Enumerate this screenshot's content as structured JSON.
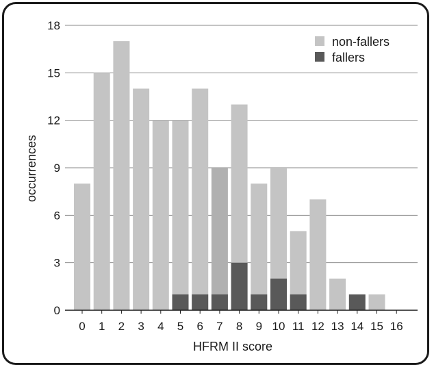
{
  "chart_data": {
    "type": "bar",
    "title": "",
    "xlabel": "HFRM II score",
    "ylabel": "occurrences",
    "ylim": [
      0,
      18
    ],
    "yticks": [
      0,
      3,
      6,
      9,
      12,
      15,
      18
    ],
    "grid": true,
    "legend_position": "top-right",
    "categories": [
      "0",
      "1",
      "2",
      "3",
      "4",
      "5",
      "6",
      "7",
      "8",
      "9",
      "10",
      "11",
      "12",
      "13",
      "14",
      "15",
      "16"
    ],
    "series": [
      {
        "name": "non-fallers",
        "color": "#c4c4c4",
        "values": [
          8,
          15,
          17,
          14,
          12,
          12,
          14,
          9,
          13,
          8,
          9,
          5,
          7,
          2,
          0,
          1,
          0
        ]
      },
      {
        "name": "fallers",
        "color": "#595959",
        "values": [
          0,
          0,
          0,
          0,
          0,
          1,
          1,
          1,
          3,
          1,
          2,
          1,
          0,
          0,
          1,
          0,
          0
        ]
      }
    ],
    "highlight_color": "#b0b0b0"
  }
}
